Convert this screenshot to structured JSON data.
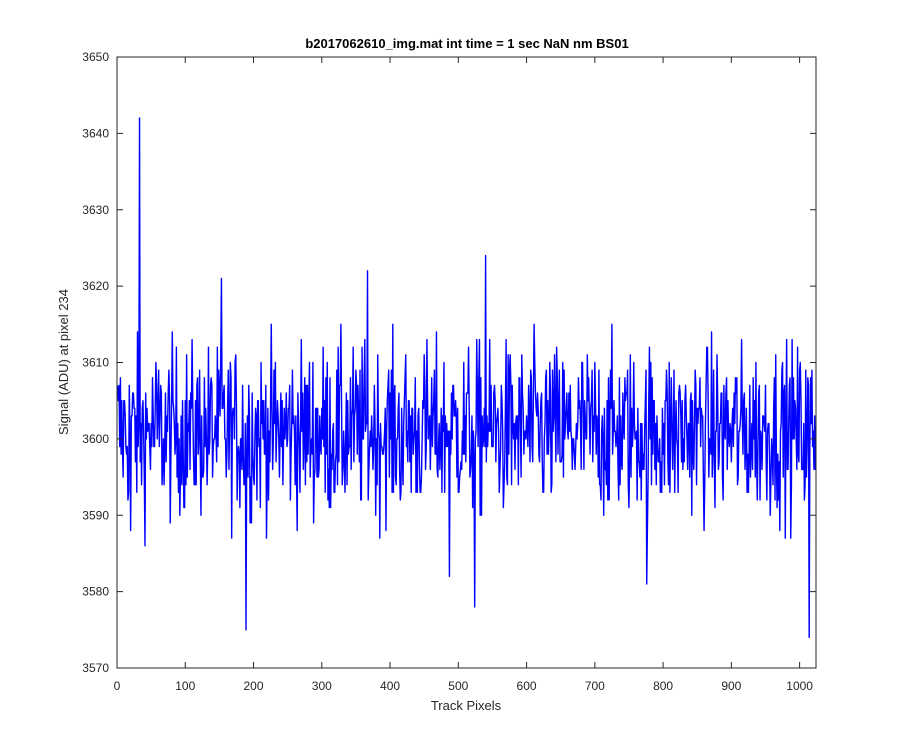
{
  "chart_data": {
    "type": "line",
    "title": "b2017062610_img.mat int time = 1 sec  NaN nm BS01",
    "xlabel": "Track Pixels",
    "ylabel": "Signal (ADU) at pixel 234",
    "xlim": [
      0,
      1024
    ],
    "ylim": [
      3570,
      3650
    ],
    "xticks": [
      0,
      100,
      200,
      300,
      400,
      500,
      600,
      700,
      800,
      900,
      1000
    ],
    "yticks": [
      3570,
      3580,
      3590,
      3600,
      3610,
      3620,
      3630,
      3640,
      3650
    ],
    "grid": false,
    "colors": {
      "series": "#0000ff",
      "axes": "#262626",
      "background": "#ffffff"
    },
    "series": [
      {
        "x_start": 1,
        "x_step": 1,
        "count": 1024,
        "mean": 3601,
        "approx_range": [
          3574,
          3642
        ],
        "notable_points": [
          {
            "x": 33,
            "y": 3642
          },
          {
            "x": 20,
            "y": 3588
          },
          {
            "x": 189,
            "y": 3575
          },
          {
            "x": 524,
            "y": 3578
          },
          {
            "x": 540,
            "y": 3624
          },
          {
            "x": 367,
            "y": 3622
          },
          {
            "x": 153,
            "y": 3621
          },
          {
            "x": 1014,
            "y": 3574
          },
          {
            "x": 776,
            "y": 3581
          },
          {
            "x": 487,
            "y": 3582
          }
        ],
        "values": []
      }
    ]
  }
}
